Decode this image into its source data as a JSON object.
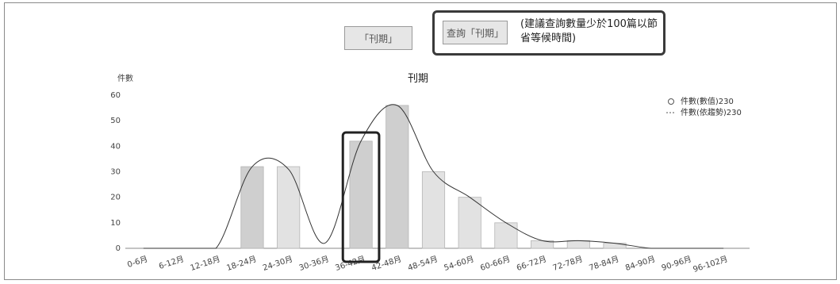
{
  "controls": {
    "lookup_label": "「刊期」",
    "query_label": "查詢「刊期」",
    "query_note": "(建議查詢數量少於100篇以節省等候時間)"
  },
  "chart_data": {
    "type": "bar",
    "title": "刊期",
    "ylabel": "件數",
    "ylim": [
      0,
      60
    ],
    "yticks": [
      0,
      10,
      20,
      30,
      40,
      50,
      60
    ],
    "categories": [
      "0-6月",
      "6-12月",
      "12-18月",
      "18-24月",
      "24-30月",
      "30-36月",
      "36-42月",
      "42-48月",
      "48-54月",
      "54-60月",
      "60-66月",
      "66-72月",
      "72-78月",
      "78-84月",
      "84-90月",
      "90-96月",
      "96-102月"
    ],
    "series": [
      {
        "name": "件數(數值)230",
        "values": [
          0,
          0,
          0,
          32,
          32,
          0,
          42,
          56,
          30,
          20,
          10,
          3,
          3,
          2,
          0,
          0,
          0
        ]
      },
      {
        "name": "件數(依趨勢)230",
        "values": [
          0,
          0,
          0,
          32,
          31,
          2,
          42,
          56,
          30,
          20,
          10,
          3,
          3,
          2,
          0,
          0,
          0
        ]
      }
    ],
    "highlight_index": 6,
    "legend_position": "top-right",
    "grid": false
  }
}
